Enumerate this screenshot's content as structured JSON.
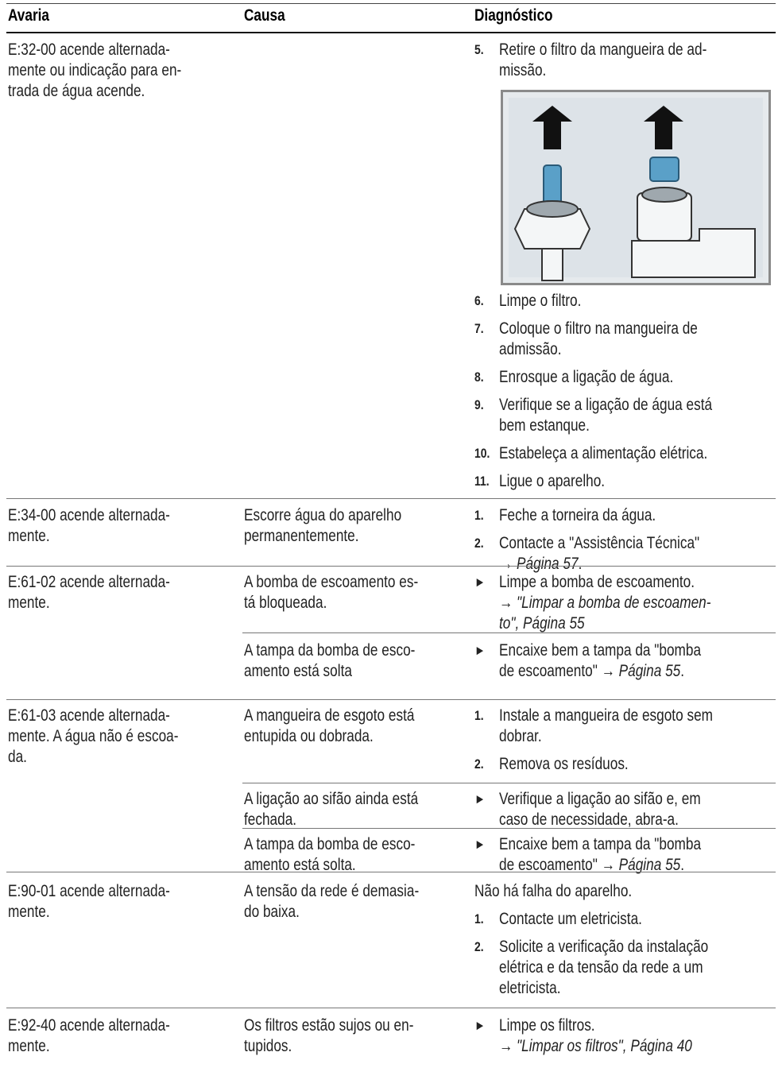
{
  "header": [
    "Avaria",
    "Causa",
    "Diagnóstico"
  ],
  "rows": [
    {
      "avaria": [
        "E:32-00 acende alternada-",
        "mente ou indicação para en-",
        "trada de água acende."
      ],
      "causes": [
        {
          "causa": [],
          "diag": [
            {
              "n": "5.",
              "lines": [
                "Retire o filtro da mangueira de ad-",
                "missão."
              ]
            },
            {
              "n": "6.",
              "lines": [
                "Limpe o filtro."
              ]
            },
            {
              "n": "7.",
              "lines": [
                "Coloque o filtro na mangueira de",
                "admissão."
              ]
            },
            {
              "n": "8.",
              "lines": [
                "Enrosque a ligação de água."
              ]
            },
            {
              "n": "9.",
              "lines": [
                "Verifique se a ligação de água está",
                "bem estanque."
              ]
            },
            {
              "n": "10.",
              "lines": [
                "Estabeleça a alimentação elétrica."
              ]
            },
            {
              "n": "11.",
              "lines": [
                "Ligue o aparelho."
              ]
            }
          ]
        }
      ]
    },
    {
      "avaria": [
        "E:34-00 acende alternada-",
        "mente."
      ],
      "causes": [
        {
          "causa": [
            "Escorre água do aparelho",
            "permanentemente."
          ],
          "diag": [
            {
              "n": "1.",
              "lines": [
                "Feche a torneira da água."
              ]
            },
            {
              "n": "2.",
              "lines": [
                "Contacte a \"Assistência Técnica\"",
                [
                  "→ ",
                  {
                    "t": "Página 57",
                    "i": true
                  },
                  "."
                ]
              ]
            }
          ]
        }
      ]
    },
    {
      "avaria": [
        "E:61-02 acende alternada-",
        "mente."
      ],
      "causes": [
        {
          "causa": [
            "A bomba de escoamento es-",
            "tá bloqueada."
          ],
          "diag": [
            {
              "n": "►",
              "lines": [
                "Limpe a bomba de escoamento.",
                [
                  {
                    "t": "→ \"Limpar a bomba de escoamen-",
                    "i": true
                  }
                ],
                [
                  {
                    "t": "to\", Página 55",
                    "i": true
                  }
                ]
              ]
            }
          ]
        },
        {
          "causa": [
            "A tampa da bomba de esco-",
            "amento está solta"
          ],
          "diag": [
            {
              "n": "►",
              "lines": [
                "Encaixe bem a tampa da \"bomba",
                [
                  "de escoamento\" → ",
                  {
                    "t": "Página 55",
                    "i": true
                  },
                  "."
                ]
              ]
            }
          ]
        }
      ]
    },
    {
      "avaria": [
        "E:61-03 acende alternada-",
        "mente. A água não é escoa-",
        "da."
      ],
      "causes": [
        {
          "causa": [
            "A mangueira de esgoto está",
            "entupida ou dobrada."
          ],
          "diag": [
            {
              "n": "1.",
              "lines": [
                "Instale a mangueira de esgoto sem",
                "dobrar."
              ]
            },
            {
              "n": "2.",
              "lines": [
                "Remova os resíduos."
              ]
            }
          ]
        },
        {
          "causa": [
            "A ligação ao sifão ainda está",
            "fechada."
          ],
          "diag": [
            {
              "n": "►",
              "lines": [
                "Verifique a ligação ao sifão e, em",
                "caso de necessidade, abra-a."
              ]
            }
          ]
        },
        {
          "causa": [
            "A tampa da bomba de esco-",
            "amento está solta."
          ],
          "diag": [
            {
              "n": "►",
              "lines": [
                "Encaixe bem a tampa da \"bomba",
                [
                  "de escoamento\" → ",
                  {
                    "t": "Página 55",
                    "i": true
                  },
                  "."
                ]
              ]
            }
          ]
        }
      ]
    },
    {
      "avaria": [
        "E:90-01 acende alternada-",
        "mente."
      ],
      "causes": [
        {
          "causa": [
            "A tensão da rede é demasia-",
            "do baixa."
          ],
          "diag": [
            {
              "lines": [
                "Não há falha do aparelho."
              ]
            },
            {
              "n": "1.",
              "lines": [
                "Contacte um eletricista."
              ]
            },
            {
              "n": "2.",
              "lines": [
                "Solicite a verificação da instalação",
                "elétrica e da tensão da rede a um",
                "eletricista."
              ]
            }
          ]
        }
      ]
    },
    {
      "avaria": [
        "E:92-40 acende alternada-",
        "mente."
      ],
      "causes": [
        {
          "causa": [
            "Os filtros estão sujos ou en-",
            "tupidos."
          ],
          "diag": [
            {
              "n": "►",
              "lines": [
                "Limpe os filtros.",
                [
                  {
                    "t": "→ \"Limpar os filtros\", Página 40",
                    "i": true
                  }
                ]
              ]
            }
          ]
        }
      ]
    }
  ]
}
